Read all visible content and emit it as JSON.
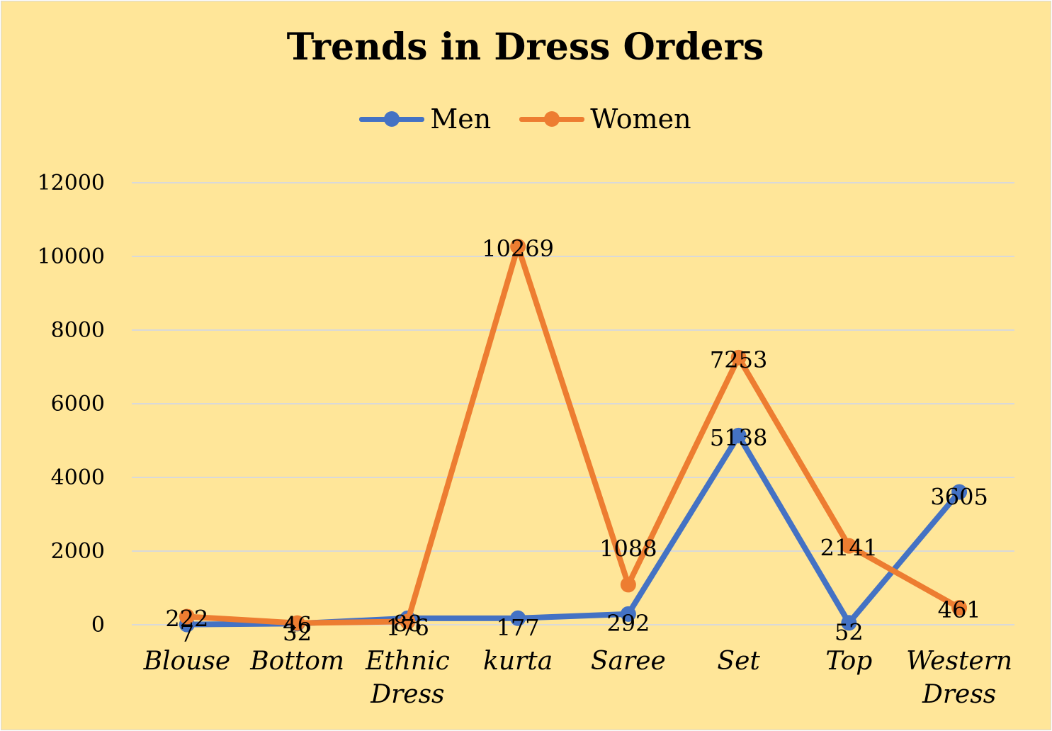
{
  "chart_data": {
    "type": "line",
    "title": "Trends in Dress Orders",
    "categories": [
      "Blouse",
      "Bottom",
      "Ethnic Dress",
      "kurta",
      "Saree",
      "Set",
      "Top",
      "Western Dress"
    ],
    "series": [
      {
        "name": "Men",
        "color": "#4472C4",
        "values": [
          7,
          32,
          176,
          177,
          292,
          5138,
          52,
          3605
        ]
      },
      {
        "name": "Women",
        "color": "#ED7D31",
        "values": [
          222,
          46,
          88,
          10269,
          1088,
          7253,
          2141,
          461
        ]
      }
    ],
    "yticks": [
      "0",
      "2000",
      "4000",
      "6000",
      "8000",
      "10000",
      "12000"
    ],
    "ylim": [
      0,
      12000
    ],
    "grid": true,
    "legend_position": "top"
  }
}
